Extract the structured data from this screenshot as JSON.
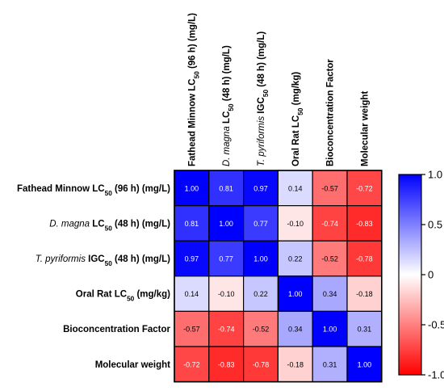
{
  "chart_data": {
    "type": "heatmap",
    "title": "",
    "row_labels": [
      {
        "parts": [
          {
            "t": "Fathead Minnow LC",
            "s": "b"
          },
          {
            "t": "50",
            "s": "b",
            "sub": true
          },
          {
            "t": " (96 h) (mg/L)",
            "s": "b"
          }
        ]
      },
      {
        "parts": [
          {
            "t": "D. magna",
            "s": "i"
          },
          {
            "t": " LC",
            "s": "b"
          },
          {
            "t": "50",
            "s": "b",
            "sub": true
          },
          {
            "t": " (48 h) (mg/L)",
            "s": "b"
          }
        ]
      },
      {
        "parts": [
          {
            "t": "T. pyriformis",
            "s": "i"
          },
          {
            "t": " IGC",
            "s": "b"
          },
          {
            "t": "50",
            "s": "b",
            "sub": true
          },
          {
            "t": " (48 h) (mg/L)",
            "s": "b"
          }
        ]
      },
      {
        "parts": [
          {
            "t": "Oral Rat LC",
            "s": "b"
          },
          {
            "t": "50",
            "s": "b",
            "sub": true
          },
          {
            "t": " (mg/kg)",
            "s": "b"
          }
        ]
      },
      {
        "parts": [
          {
            "t": "Bioconcentration Factor",
            "s": "b"
          }
        ]
      },
      {
        "parts": [
          {
            "t": "Molecular weight",
            "s": "b"
          }
        ]
      }
    ],
    "values": [
      [
        "1.00",
        "0.81",
        "0.97",
        "0.14",
        "-0.57",
        "-0.72"
      ],
      [
        "0.81",
        "1.00",
        "0.77",
        "-0.10",
        "-0.74",
        "-0.83"
      ],
      [
        "0.97",
        "0.77",
        "1.00",
        "0.22",
        "-0.52",
        "-0.78"
      ],
      [
        "0.14",
        "-0.10",
        "0.22",
        "1.00",
        "0.34",
        "-0.18"
      ],
      [
        "-0.57",
        "-0.74",
        "-0.52",
        "0.34",
        "1.00",
        "0.31"
      ],
      [
        "-0.72",
        "-0.83",
        "-0.78",
        "-0.18",
        "0.31",
        "1.00"
      ]
    ],
    "colorbar": {
      "min": -1.0,
      "max": 1.0,
      "ticks": [
        "1.0",
        "0.5",
        "0",
        "-0.5",
        "-1.0"
      ],
      "colors": {
        "negative": "#ff0000",
        "zero": "#ffffff",
        "positive": "#0000ff"
      }
    },
    "grid": false,
    "legend": "right"
  }
}
